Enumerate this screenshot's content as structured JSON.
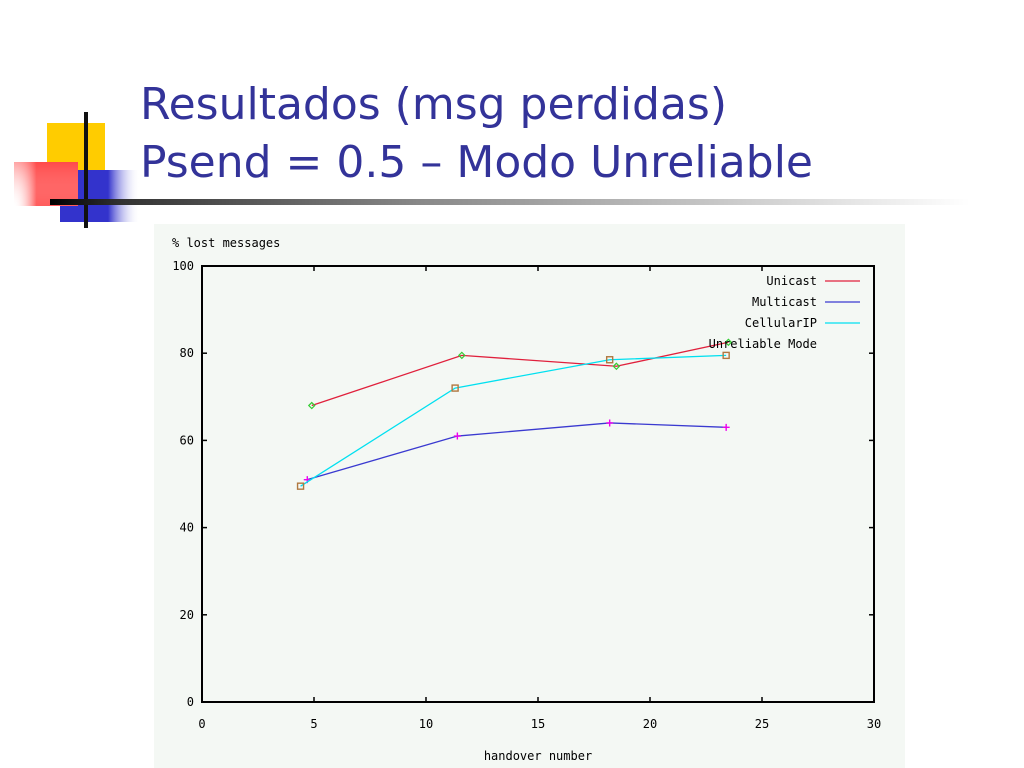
{
  "slide": {
    "title_line1": "Resultados (msg perdidas)",
    "title_line2": "Psend = 0.5 – Modo Unreliable",
    "accent_colors": {
      "yellow": "#ffcc00",
      "red": "#ff4a4a",
      "blue": "#3333cc",
      "title": "#333399"
    }
  },
  "chart_data": {
    "type": "line",
    "title": "",
    "xlabel": "handover number",
    "ylabel": "% lost messages",
    "xlim": [
      0,
      30
    ],
    "ylim": [
      0,
      100
    ],
    "xticks": [
      0,
      5,
      10,
      15,
      20,
      25,
      30
    ],
    "yticks": [
      0,
      20,
      40,
      60,
      80,
      100
    ],
    "grid": false,
    "legend_position": "top-right",
    "background": "#f4f8f4",
    "series": [
      {
        "name": "Unicast",
        "color": "#e0203c",
        "marker": "diamond",
        "marker_color": "#33cc33",
        "x": [
          4.9,
          11.6,
          18.5,
          23.5
        ],
        "y": [
          68,
          79.5,
          77,
          82.5
        ]
      },
      {
        "name": "Multicast",
        "color": "#3a3ad0",
        "marker": "plus",
        "marker_color": "#ee00ee",
        "x": [
          4.7,
          11.4,
          18.2,
          23.4
        ],
        "y": [
          51,
          61,
          64,
          63
        ]
      },
      {
        "name": "CellularIP",
        "color": "#00e0f0",
        "marker": "square",
        "marker_color": "#b07840",
        "x": [
          4.4,
          11.3,
          18.2,
          23.4
        ],
        "y": [
          49.5,
          72,
          78.5,
          79.5
        ]
      },
      {
        "name": "Unreliable Mode",
        "color": "#e0203c",
        "marker": "none",
        "marker_color": "#33cc33",
        "x": [],
        "y": []
      }
    ]
  }
}
